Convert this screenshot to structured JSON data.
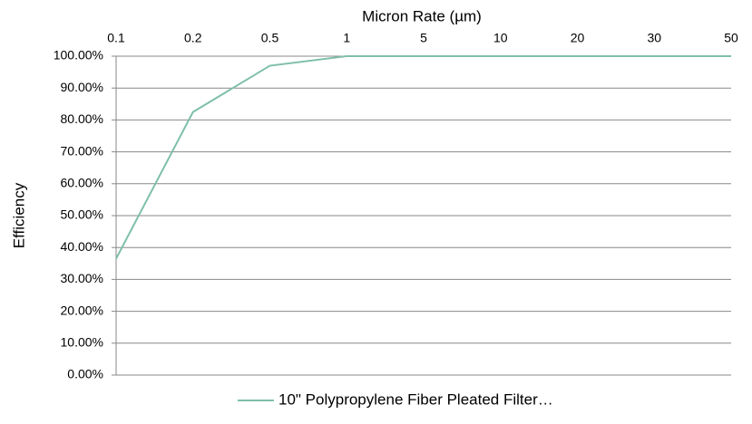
{
  "chart_data": {
    "type": "line",
    "x_label": "Micron Rate (µm)",
    "y_label": "Efficiency",
    "categories": [
      "0.1",
      "0.2",
      "0.5",
      "1",
      "5",
      "10",
      "20",
      "30",
      "50"
    ],
    "series": [
      {
        "name": "10\" Polypropylene Fiber Pleated Filter…",
        "color": "#7fbfa9",
        "values": [
          36.5,
          82.5,
          97,
          100,
          100,
          100,
          100,
          100,
          100
        ]
      }
    ],
    "ylim": [
      0,
      100
    ],
    "yticks": [
      {
        "value": 0,
        "label": "0.00%"
      },
      {
        "value": 10,
        "label": "10.00%"
      },
      {
        "value": 20,
        "label": "20.00%"
      },
      {
        "value": 30,
        "label": "30.00%"
      },
      {
        "value": 40,
        "label": "40.00%"
      },
      {
        "value": 50,
        "label": "50.00%"
      },
      {
        "value": 60,
        "label": "60.00%"
      },
      {
        "value": 70,
        "label": "70.00%"
      },
      {
        "value": 80,
        "label": "80.00%"
      },
      {
        "value": 90,
        "label": "90.00%"
      },
      {
        "value": 100,
        "label": "100.00%"
      }
    ],
    "grid": true,
    "legend": "bottom"
  }
}
